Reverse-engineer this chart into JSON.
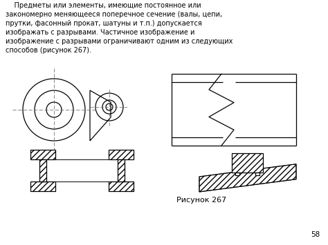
{
  "bg_color": "#ffffff",
  "text_color": "#000000",
  "title_text": "    Предметы или элементы, имеющие постоянное или\nзакономерно меняющееся поперечное сечение (валы, цепи,\nпрутки, фасонный прокат, шатуны и т.п.) допускается\nизображать с разрывами. Частичное изображение и\nизображение с разрывами ограничивают одним из следующих\nспособов (рисунок 267).",
  "caption": "Рисунок 267",
  "page_num": "58",
  "line_color": "#000000",
  "hatch_color": "#000000"
}
